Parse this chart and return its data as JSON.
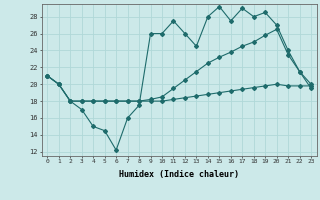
{
  "xlabel": "Humidex (Indice chaleur)",
  "xlim": [
    -0.5,
    23.5
  ],
  "ylim": [
    11.5,
    29.5
  ],
  "yticks": [
    12,
    14,
    16,
    18,
    20,
    22,
    24,
    26,
    28
  ],
  "xticks": [
    0,
    1,
    2,
    3,
    4,
    5,
    6,
    7,
    8,
    9,
    10,
    11,
    12,
    13,
    14,
    15,
    16,
    17,
    18,
    19,
    20,
    21,
    22,
    23
  ],
  "bg_color": "#cce9e9",
  "line_color": "#1e6b6b",
  "grid_color": "#b0d8d8",
  "line1_y": [
    21.0,
    20.0,
    18.0,
    17.0,
    15.0,
    14.5,
    12.2,
    16.0,
    17.5,
    26.0,
    26.0,
    27.5,
    26.0,
    24.5,
    28.0,
    29.2,
    27.5,
    29.0,
    28.0,
    28.5,
    27.0,
    24.0,
    21.5,
    19.5
  ],
  "line2_y": [
    21.0,
    20.0,
    18.0,
    18.0,
    18.0,
    18.0,
    18.0,
    18.0,
    18.0,
    18.2,
    18.5,
    19.5,
    20.5,
    21.5,
    22.5,
    23.2,
    23.8,
    24.5,
    25.0,
    25.8,
    26.5,
    23.5,
    21.5,
    20.0
  ],
  "line3_y": [
    21.0,
    20.0,
    18.0,
    18.0,
    18.0,
    18.0,
    18.0,
    18.0,
    18.0,
    18.0,
    18.0,
    18.2,
    18.4,
    18.6,
    18.8,
    19.0,
    19.2,
    19.4,
    19.6,
    19.8,
    20.0,
    19.8,
    19.8,
    19.8
  ]
}
